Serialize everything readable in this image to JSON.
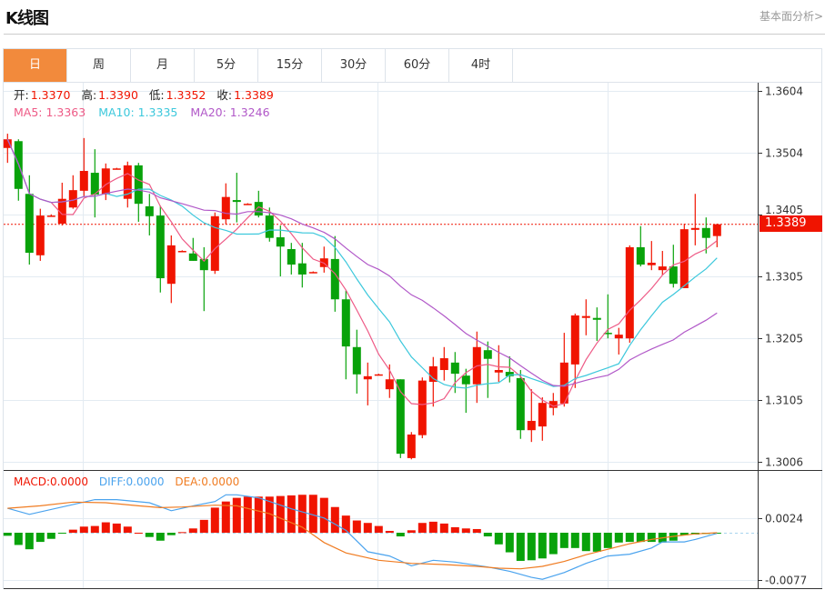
{
  "header": {
    "title": "K线图",
    "link": "基本面分析>"
  },
  "tabs": [
    {
      "label": "日",
      "active": true
    },
    {
      "label": "周"
    },
    {
      "label": "月"
    },
    {
      "label": "5分"
    },
    {
      "label": "15分"
    },
    {
      "label": "30分"
    },
    {
      "label": "60分"
    },
    {
      "label": "4时"
    }
  ],
  "legend": {
    "open_label": "开:",
    "open": "1.3370",
    "high_label": "高:",
    "high": "1.3390",
    "low_label": "低:",
    "low": "1.3352",
    "close_label": "收:",
    "close": "1.3389",
    "ma5": "MA5: 1.3363",
    "ma10": "MA10: 1.3335",
    "ma20": "MA20: 1.3246"
  },
  "macd_legend": {
    "macd": "MACD:0.0000",
    "diff": "DIFF:0.0000",
    "dea": "DEA:0.0000"
  },
  "current_price": "1.3389",
  "colors": {
    "up": "#f01400",
    "down": "#08a20a",
    "ma5": "#ee5a86",
    "ma10": "#3cc8dc",
    "ma20": "#b158c8",
    "diff": "#4aa3ee",
    "dea": "#f07c22",
    "accent": "#f28a3c"
  },
  "chart_data": [
    {
      "type": "candlestick",
      "price_ticks": [
        "1.3604",
        "1.3504",
        "1.3405",
        "1.3305",
        "1.3205",
        "1.3105",
        "1.3006"
      ],
      "ylim": [
        1.3006,
        1.3604
      ],
      "ohlc": [
        [
          1.3512,
          1.3535,
          1.3488,
          1.3526
        ],
        [
          1.3523,
          1.3526,
          1.3427,
          1.3446
        ],
        [
          1.3438,
          1.3468,
          1.3324,
          1.3343
        ],
        [
          1.3339,
          1.3414,
          1.333,
          1.3403
        ],
        [
          1.3403,
          1.3405,
          1.3401,
          1.3403
        ],
        [
          1.339,
          1.3456,
          1.3387,
          1.343
        ],
        [
          1.3416,
          1.3468,
          1.3414,
          1.3444
        ],
        [
          1.3443,
          1.3528,
          1.3434,
          1.3475
        ],
        [
          1.3472,
          1.351,
          1.34,
          1.3437
        ],
        [
          1.3437,
          1.3487,
          1.3428,
          1.3479
        ],
        [
          1.3479,
          1.348,
          1.3478,
          1.3479
        ],
        [
          1.343,
          1.349,
          1.3416,
          1.3484
        ],
        [
          1.3484,
          1.3488,
          1.3393,
          1.3422
        ],
        [
          1.3418,
          1.3438,
          1.3371,
          1.3402
        ],
        [
          1.3403,
          1.3419,
          1.3279,
          1.3302
        ],
        [
          1.3293,
          1.3371,
          1.3262,
          1.3355
        ],
        [
          1.3346,
          1.3347,
          1.3345,
          1.3346
        ],
        [
          1.3342,
          1.3367,
          1.333,
          1.333
        ],
        [
          1.3333,
          1.3352,
          1.3249,
          1.3315
        ],
        [
          1.3314,
          1.3408,
          1.3309,
          1.3402
        ],
        [
          1.3397,
          1.3455,
          1.3389,
          1.3433
        ],
        [
          1.3428,
          1.3472,
          1.3392,
          1.3425
        ],
        [
          1.3422,
          1.3423,
          1.3421,
          1.3422
        ],
        [
          1.3425,
          1.3443,
          1.34,
          1.3403
        ],
        [
          1.3403,
          1.3416,
          1.3361,
          1.3367
        ],
        [
          1.3368,
          1.3387,
          1.3305,
          1.3353
        ],
        [
          1.3349,
          1.3359,
          1.3308,
          1.3324
        ],
        [
          1.3326,
          1.3359,
          1.3287,
          1.3308
        ],
        [
          1.3312,
          1.3313,
          1.3311,
          1.3312
        ],
        [
          1.332,
          1.3353,
          1.3311,
          1.3334
        ],
        [
          1.3333,
          1.337,
          1.3248,
          1.3268
        ],
        [
          1.3268,
          1.3282,
          1.3139,
          1.3192
        ],
        [
          1.3191,
          1.3219,
          1.3116,
          1.3147
        ],
        [
          1.3139,
          1.3166,
          1.3097,
          1.3144
        ],
        [
          1.3147,
          1.3148,
          1.3146,
          1.3147
        ],
        [
          1.3123,
          1.3163,
          1.3109,
          1.3139
        ],
        [
          1.3139,
          1.3139,
          1.3012,
          1.3019
        ],
        [
          1.3012,
          1.3054,
          1.301,
          1.305
        ],
        [
          1.3049,
          1.3142,
          1.3044,
          1.3137
        ],
        [
          1.3135,
          1.3175,
          1.3095,
          1.316
        ],
        [
          1.3154,
          1.3191,
          1.3137,
          1.3173
        ],
        [
          1.3166,
          1.3183,
          1.3117,
          1.3148
        ],
        [
          1.3145,
          1.3156,
          1.3085,
          1.3131
        ],
        [
          1.3131,
          1.3216,
          1.3101,
          1.3191
        ],
        [
          1.3186,
          1.32,
          1.3109,
          1.3172
        ],
        [
          1.315,
          1.3194,
          1.3135,
          1.3154
        ],
        [
          1.3151,
          1.3176,
          1.3134,
          1.3144
        ],
        [
          1.3141,
          1.3154,
          1.3043,
          1.3057
        ],
        [
          1.3057,
          1.3123,
          1.3038,
          1.3072
        ],
        [
          1.3063,
          1.311,
          1.304,
          1.3101
        ],
        [
          1.3093,
          1.3117,
          1.3081,
          1.3104
        ],
        [
          1.31,
          1.3214,
          1.3095,
          1.3166
        ],
        [
          1.3163,
          1.3245,
          1.3125,
          1.3242
        ],
        [
          1.3238,
          1.3268,
          1.321,
          1.3241
        ],
        [
          1.3238,
          1.3255,
          1.3201,
          1.3235
        ],
        [
          1.3214,
          1.3276,
          1.3205,
          1.3213
        ],
        [
          1.3205,
          1.3222,
          1.3179,
          1.3211
        ],
        [
          1.3205,
          1.3355,
          1.3198,
          1.3352
        ],
        [
          1.3352,
          1.3386,
          1.3321,
          1.3324
        ],
        [
          1.3323,
          1.3362,
          1.3315,
          1.3327
        ],
        [
          1.3315,
          1.3346,
          1.3307,
          1.3321
        ],
        [
          1.3321,
          1.3356,
          1.3287,
          1.3293
        ],
        [
          1.3286,
          1.339,
          1.3286,
          1.3381
        ],
        [
          1.338,
          1.3438,
          1.3355,
          1.3383
        ],
        [
          1.3383,
          1.34,
          1.3342,
          1.3367
        ],
        [
          1.337,
          1.339,
          1.3352,
          1.3389
        ]
      ],
      "moving_averages": [
        "MA5",
        "MA10",
        "MA20"
      ]
    },
    {
      "type": "bar",
      "name": "MACD",
      "ticks": [
        "0.0024",
        "-0.0077"
      ],
      "histogram": [
        -0.0005,
        -0.002,
        -0.0027,
        -0.0015,
        -0.001,
        -0.0001,
        0.0005,
        0.001,
        0.0011,
        0.0017,
        0.0015,
        0.001,
        0.0,
        -0.0007,
        -0.0013,
        -0.0004,
        0.0001,
        0.0007,
        0.0021,
        0.0041,
        0.0051,
        0.0057,
        0.0059,
        0.0059,
        0.0059,
        0.006,
        0.0061,
        0.0062,
        0.0062,
        0.0057,
        0.0042,
        0.0028,
        0.002,
        0.0016,
        0.0011,
        0.0003,
        -0.0006,
        0.0004,
        0.0016,
        0.0018,
        0.0015,
        0.0009,
        0.0007,
        0.0006,
        -0.0006,
        -0.0019,
        -0.0032,
        -0.0046,
        -0.0045,
        -0.0042,
        -0.0035,
        -0.0025,
        -0.0025,
        -0.003,
        -0.0031,
        -0.0025,
        -0.0016,
        -0.0015,
        -0.0015,
        -0.0015,
        -0.0016,
        -0.0013,
        -0.0004,
        -0.0003,
        -0.0002,
        -0.0001
      ],
      "diff": [
        [
          0,
          0.004
        ],
        [
          2,
          0.003
        ],
        [
          8,
          0.0054
        ],
        [
          10,
          0.0054
        ],
        [
          13,
          0.0049
        ],
        [
          15,
          0.0036
        ],
        [
          17,
          0.0044
        ],
        [
          19,
          0.0051
        ],
        [
          20,
          0.0062
        ],
        [
          21,
          0.0062
        ],
        [
          23,
          0.0057
        ],
        [
          26,
          0.0039
        ],
        [
          29,
          0.0024
        ],
        [
          31,
          0.0004
        ],
        [
          33,
          -0.0031
        ],
        [
          35,
          -0.0038
        ],
        [
          37,
          -0.0054
        ],
        [
          39,
          -0.0045
        ],
        [
          41,
          -0.0048
        ],
        [
          44,
          -0.0056
        ],
        [
          46,
          -0.0063
        ],
        [
          48,
          -0.0073
        ],
        [
          49,
          -0.0076
        ],
        [
          51,
          -0.0065
        ],
        [
          53,
          -0.005
        ],
        [
          55,
          -0.0038
        ],
        [
          57,
          -0.0035
        ],
        [
          59,
          -0.0025
        ],
        [
          60,
          -0.0015
        ],
        [
          62,
          -0.0015
        ],
        [
          63,
          -0.0011
        ],
        [
          65,
          -0.0001
        ]
      ],
      "dea": [
        [
          0,
          0.004
        ],
        [
          3,
          0.0044
        ],
        [
          6,
          0.005
        ],
        [
          9,
          0.0049
        ],
        [
          12,
          0.0044
        ],
        [
          14,
          0.0041
        ],
        [
          16,
          0.0042
        ],
        [
          19,
          0.0045
        ],
        [
          21,
          0.0044
        ],
        [
          24,
          0.0031
        ],
        [
          27,
          0.0009
        ],
        [
          29,
          -0.0016
        ],
        [
          31,
          -0.0033
        ],
        [
          34,
          -0.0045
        ],
        [
          37,
          -0.005
        ],
        [
          40,
          -0.0052
        ],
        [
          43,
          -0.0055
        ],
        [
          45,
          -0.0058
        ],
        [
          47,
          -0.0059
        ],
        [
          49,
          -0.0055
        ],
        [
          51,
          -0.0047
        ],
        [
          53,
          -0.0036
        ],
        [
          55,
          -0.0027
        ],
        [
          57,
          -0.0018
        ],
        [
          59,
          -0.0011
        ],
        [
          61,
          -0.0006
        ],
        [
          63,
          -0.0002
        ],
        [
          65,
          0.0
        ]
      ]
    }
  ]
}
